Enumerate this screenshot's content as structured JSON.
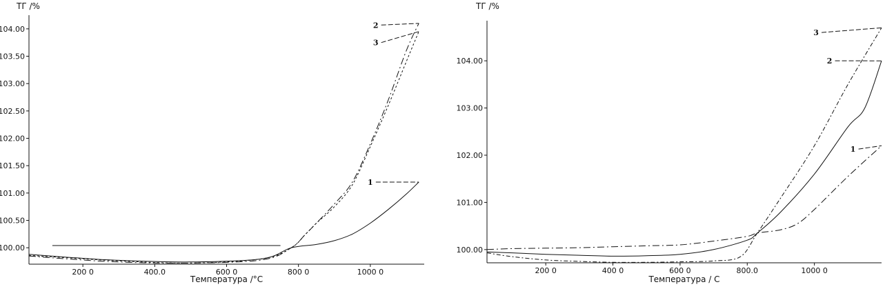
{
  "chart_data": [
    {
      "type": "line",
      "ylabel": "ТГ /%",
      "xlabel": "Температура /°C",
      "xlim": [
        50,
        1150
      ],
      "ylim": [
        99.7,
        104.25
      ],
      "xticks": [
        200,
        400,
        600,
        800,
        1000
      ],
      "xtick_labels": [
        "200 0",
        "400.0",
        "600 0",
        "800 0",
        "1000 0"
      ],
      "yticks": [
        100.0,
        100.5,
        101.0,
        101.5,
        102.0,
        102.5,
        103.0,
        103.5,
        104.0
      ],
      "ytick_labels": [
        "100.00",
        "100.50",
        "101.00",
        "101.50",
        "102.00",
        "102.50",
        "103.00",
        "103.50",
        "104.00"
      ],
      "series": [
        {
          "name": "1",
          "x": [
            50,
            150,
            300,
            500,
            700,
            780,
            850,
            900,
            950,
            1000,
            1050,
            1100,
            1135
          ],
          "y": [
            99.88,
            99.83,
            99.77,
            99.74,
            99.8,
            100.0,
            100.06,
            100.13,
            100.25,
            100.45,
            100.7,
            100.98,
            101.2
          ]
        },
        {
          "name": "2",
          "x": [
            50,
            150,
            300,
            500,
            700,
            780,
            820,
            850,
            900,
            950,
            1000,
            1050,
            1100,
            1135
          ],
          "y": [
            99.85,
            99.8,
            99.74,
            99.72,
            99.78,
            100.0,
            100.25,
            100.45,
            100.8,
            101.2,
            101.9,
            102.7,
            103.6,
            104.1
          ]
        },
        {
          "name": "3",
          "x": [
            50,
            150,
            300,
            500,
            700,
            780,
            820,
            850,
            900,
            950,
            1000,
            1050,
            1100,
            1135
          ],
          "y": [
            99.86,
            99.82,
            99.76,
            99.72,
            99.8,
            100.0,
            100.25,
            100.45,
            100.75,
            101.15,
            101.85,
            102.6,
            103.4,
            103.95
          ]
        },
        {
          "name": "",
          "x": [
            115,
            750
          ],
          "y": [
            100.04,
            100.04
          ]
        }
      ],
      "labels": [
        {
          "text": "1",
          "series": "1",
          "at": [
            1000,
            101.2
          ]
        },
        {
          "text": "2",
          "series": "2",
          "at": [
            1015,
            104.07
          ]
        },
        {
          "text": "3",
          "series": "3",
          "at": [
            1015,
            103.75
          ]
        }
      ]
    },
    {
      "type": "line",
      "ylabel": "ТГ /%",
      "xlabel": "Температура / С",
      "xlim": [
        25,
        1200
      ],
      "ylim": [
        99.72,
        104.85
      ],
      "xticks": [
        200,
        400,
        600,
        800,
        1000
      ],
      "xtick_labels": [
        "200 0",
        "400 0",
        "600 0",
        "800.0",
        "1000 0"
      ],
      "yticks": [
        100.0,
        101.0,
        102.0,
        103.0,
        104.0
      ],
      "ytick_labels": [
        "100.00",
        "101.00",
        "102.00",
        "103.00",
        "104.00"
      ],
      "series": [
        {
          "name": "1",
          "x": [
            25,
            100,
            200,
            300,
            400,
            500,
            600,
            700,
            800,
            830,
            900,
            950,
            1000,
            1100,
            1200
          ],
          "y": [
            100.0,
            100.02,
            100.03,
            100.04,
            100.06,
            100.08,
            100.1,
            100.18,
            100.28,
            100.35,
            100.42,
            100.55,
            100.85,
            101.55,
            102.2
          ]
        },
        {
          "name": "2",
          "x": [
            25,
            100,
            200,
            300,
            400,
            500,
            600,
            700,
            800,
            830,
            900,
            1000,
            1100,
            1150,
            1200
          ],
          "y": [
            99.95,
            99.93,
            99.9,
            99.88,
            99.86,
            99.87,
            99.9,
            100.0,
            100.2,
            100.35,
            100.8,
            101.6,
            102.6,
            103.0,
            104.0
          ]
        },
        {
          "name": "3",
          "x": [
            25,
            100,
            200,
            300,
            400,
            500,
            600,
            700,
            780,
            830,
            900,
            1000,
            1100,
            1200
          ],
          "y": [
            99.93,
            99.85,
            99.78,
            99.75,
            99.73,
            99.73,
            99.74,
            99.76,
            99.85,
            100.35,
            101.1,
            102.2,
            103.5,
            104.7
          ]
        }
      ],
      "labels": [
        {
          "text": "1",
          "series": "1",
          "at": [
            1115,
            102.13
          ]
        },
        {
          "text": "2",
          "series": "2",
          "at": [
            1045,
            104.0
          ]
        },
        {
          "text": "3",
          "series": "3",
          "at": [
            1005,
            104.6
          ]
        }
      ]
    }
  ]
}
